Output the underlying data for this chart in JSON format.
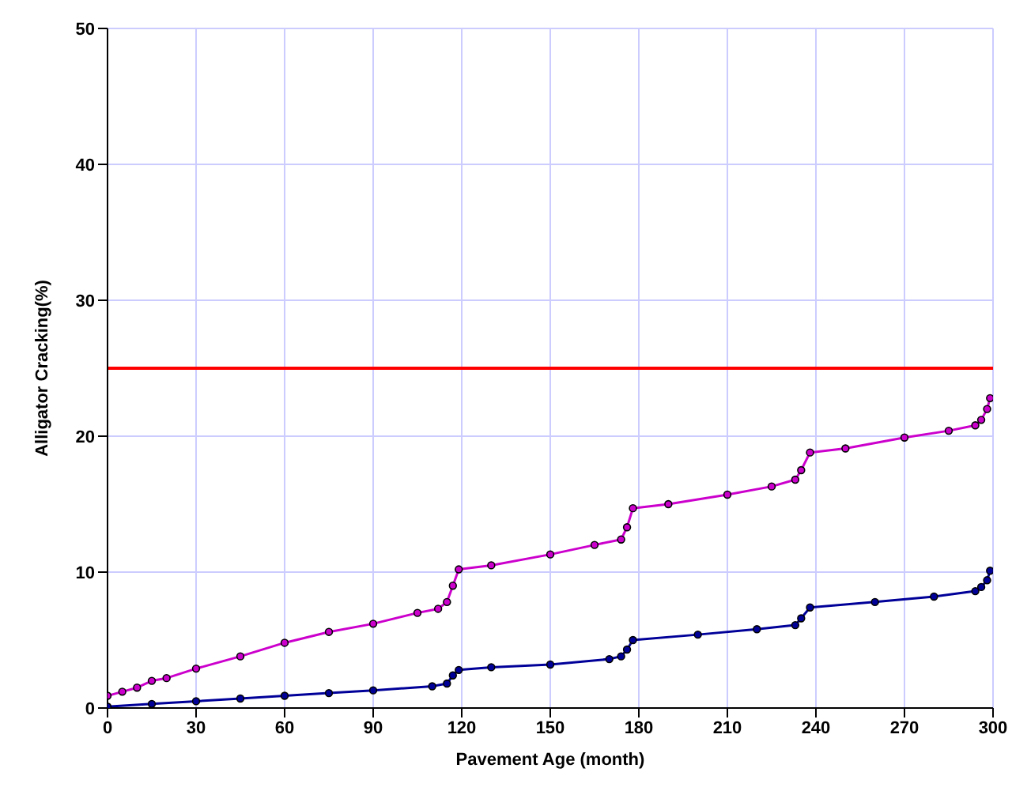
{
  "chart_data": {
    "type": "line",
    "xlabel": "Pavement Age (month)",
    "ylabel": "Alligator Cracking(%)",
    "xlim": [
      0,
      300
    ],
    "xticks": [
      0,
      30,
      60,
      90,
      120,
      150,
      180,
      210,
      240,
      270,
      300
    ],
    "ylim": [
      0,
      50
    ],
    "yticks": [
      0,
      10,
      20,
      30,
      40,
      50
    ],
    "grid": true,
    "marker": "circle",
    "line_style": "solid",
    "ref_lines": [
      {
        "axis": "y",
        "value": 25,
        "color": "#ff0000"
      }
    ],
    "series": [
      {
        "color": "#cc00cc",
        "x": [
          0,
          5,
          10,
          15,
          20,
          30,
          45,
          60,
          75,
          90,
          105,
          112,
          115,
          117,
          119,
          130,
          150,
          165,
          174,
          176,
          178,
          190,
          210,
          225,
          233,
          235,
          238,
          250,
          270,
          285,
          294,
          296,
          298,
          299
        ],
        "values": [
          0.9,
          1.2,
          1.5,
          2.0,
          2.2,
          2.9,
          3.8,
          4.8,
          5.6,
          6.2,
          7.0,
          7.3,
          7.8,
          9.0,
          10.2,
          10.5,
          11.3,
          12.0,
          12.4,
          13.3,
          14.7,
          15.0,
          15.7,
          16.3,
          16.8,
          17.5,
          18.8,
          19.1,
          19.9,
          20.4,
          20.8,
          21.2,
          22.0,
          22.8
        ]
      },
      {
        "color": "#000099",
        "x": [
          0,
          15,
          30,
          45,
          60,
          75,
          90,
          110,
          115,
          117,
          119,
          130,
          150,
          170,
          174,
          176,
          178,
          200,
          220,
          233,
          235,
          238,
          260,
          280,
          294,
          296,
          298,
          299
        ],
        "values": [
          0.1,
          0.3,
          0.5,
          0.7,
          0.9,
          1.1,
          1.3,
          1.6,
          1.8,
          2.4,
          2.8,
          3.0,
          3.2,
          3.6,
          3.8,
          4.3,
          5.0,
          5.4,
          5.8,
          6.1,
          6.6,
          7.4,
          7.8,
          8.2,
          8.6,
          8.9,
          9.4,
          10.1
        ]
      }
    ]
  }
}
